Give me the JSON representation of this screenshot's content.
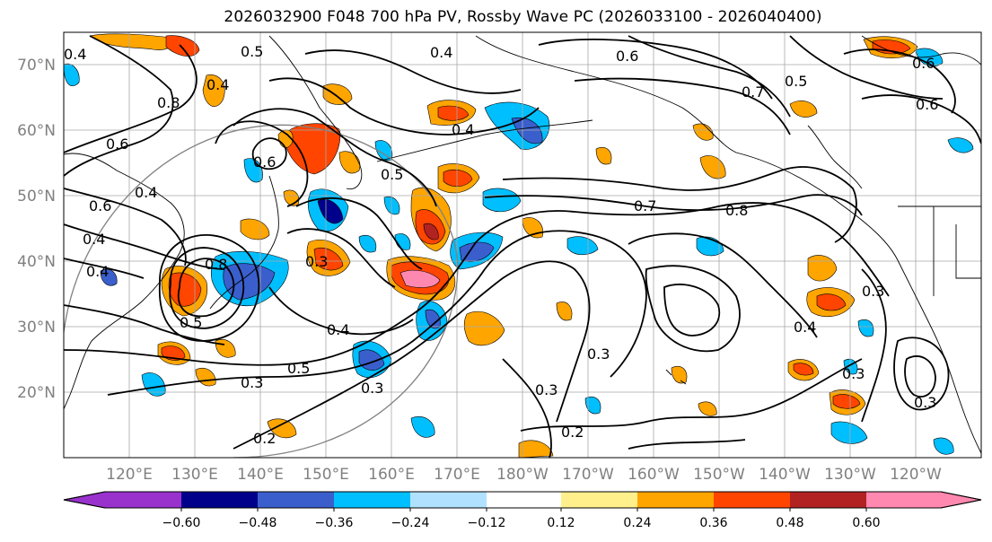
{
  "title": "2026032900 F048 700 hPa PV, Rossby Wave PC (2026033100 - 2026040400)",
  "lat_labels": [
    "70°N",
    "60°N",
    "50°N",
    "40°N",
    "30°N",
    "20°N"
  ],
  "lon_labels": [
    "120°E",
    "130°E",
    "140°E",
    "150°E",
    "160°E",
    "170°E",
    "180°W",
    "170°W",
    "160°W",
    "150°W",
    "140°W",
    "130°W",
    "120°W"
  ],
  "colorbar": {
    "ticks": [
      "−0.60",
      "−0.48",
      "−0.36",
      "−0.24",
      "−0.12",
      "0.12",
      "0.24",
      "0.36",
      "0.48",
      "0.60"
    ],
    "colors": [
      "#9932cc",
      "#00008b",
      "#3a5fcd",
      "#00bfff",
      "#b0e2ff",
      "#ffffff",
      "#fff08c",
      "#ffa500",
      "#ff4500",
      "#b22222",
      "#ff88b0"
    ]
  },
  "contour_labels": [
    "0.5",
    "0.4",
    "0.6",
    "0.7",
    "0.8",
    "0.6",
    "0.7",
    "0.6",
    "0.4",
    "0.5",
    "0.6",
    "0.4",
    "0.3",
    "0.4",
    "0.3",
    "0.5",
    "0.3",
    "0.2",
    "0.2",
    "0.3",
    "0.3",
    "0.4",
    "0.3",
    "0.3",
    "0.8",
    "0.4",
    "0.3",
    "0.6",
    "0.4",
    "0.5",
    "0.8",
    "0.6",
    "0.5",
    "0.4",
    "0.4"
  ]
}
